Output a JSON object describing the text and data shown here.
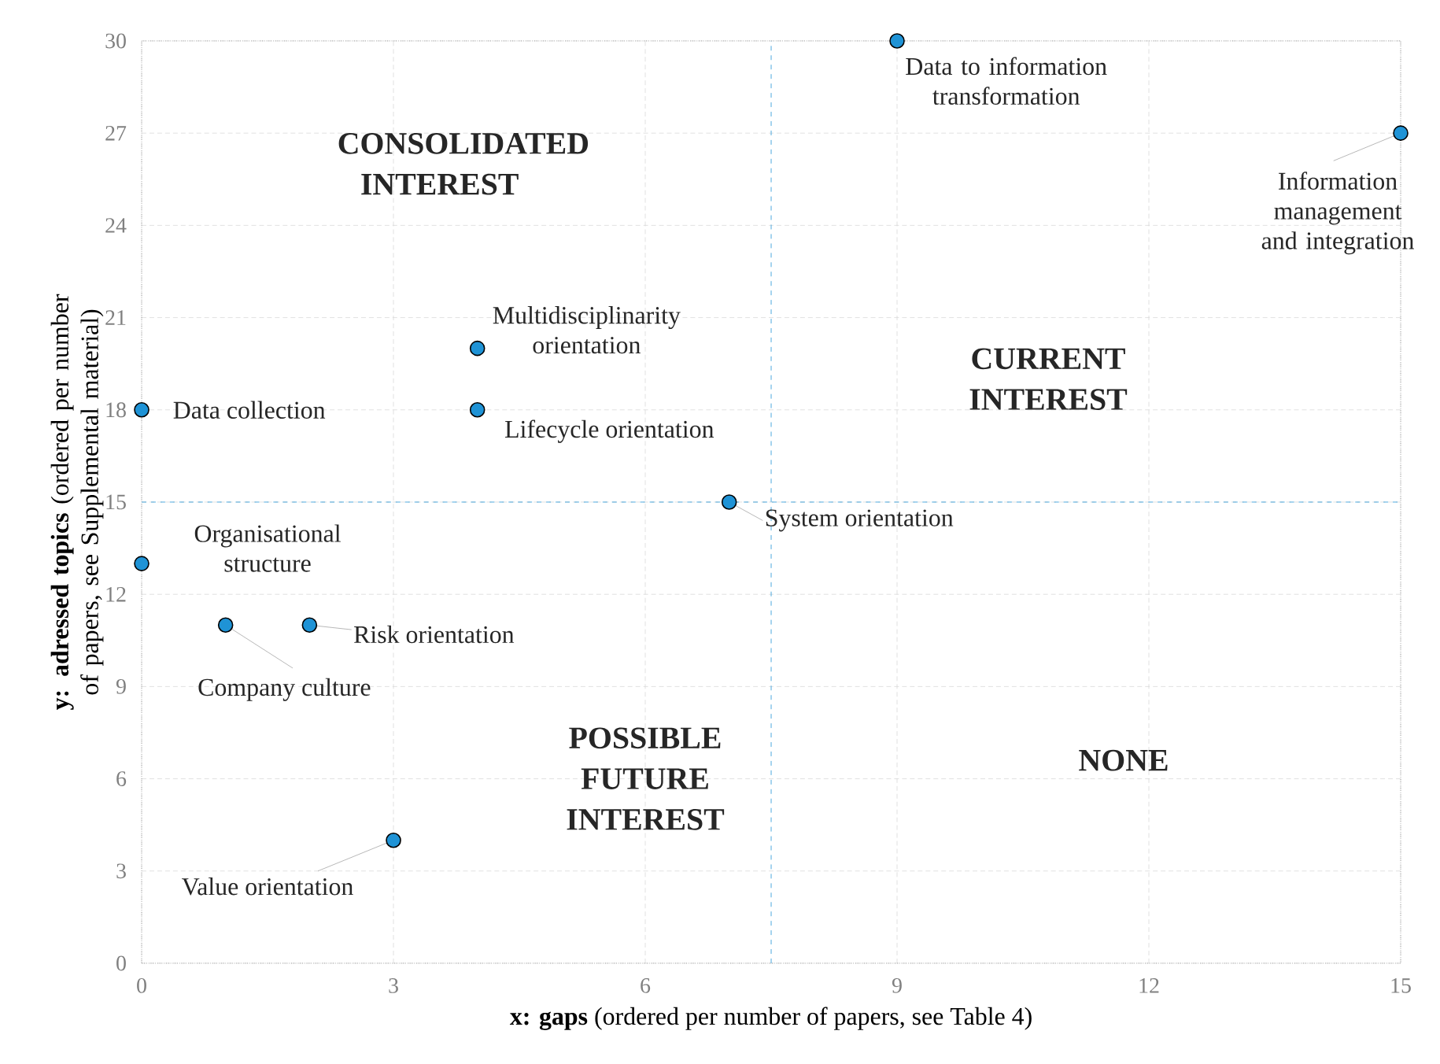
{
  "chart_data": {
    "type": "scatter",
    "xlabel": "**x: gaps** (ordered per number of papers, see Table 4)",
    "ylabel": "**y: adressed topics** (ordered per number of papers, see Supplemental material)",
    "x": [
      9,
      15,
      4,
      0,
      4,
      7,
      0,
      1,
      2,
      3
    ],
    "series": [
      {
        "color": "#1f93d6",
        "values": [
          30,
          27,
          20,
          18,
          18,
          15,
          13,
          11,
          11,
          4
        ]
      }
    ],
    "xlim": [
      0,
      15
    ],
    "ylim": [
      0,
      30
    ],
    "xticks": [
      0,
      3,
      6,
      9,
      12,
      15
    ],
    "yticks": [
      0,
      3,
      6,
      9,
      12,
      15,
      18,
      21,
      24,
      27,
      30
    ],
    "grid": true,
    "marker": "circle",
    "ref_lines": [
      {
        "axis": "x",
        "value": 7.5,
        "color": "#1f93d6",
        "line_style": "dashed"
      },
      {
        "axis": "y",
        "value": 15,
        "color": "#1f93d6",
        "line_style": "dashed"
      }
    ],
    "annotations": [
      {
        "text": "Data to information transformation",
        "x": 9,
        "y": 30
      },
      {
        "text": "Information management and integration",
        "x": 15,
        "y": 27
      },
      {
        "text": "Multidisciplinarity orientation",
        "x": 4,
        "y": 20
      },
      {
        "text": "Data collection",
        "x": 0,
        "y": 18
      },
      {
        "text": "Lifecycle orientation",
        "x": 4,
        "y": 18
      },
      {
        "text": "System orientation",
        "x": 7,
        "y": 15
      },
      {
        "text": "Organisational structure",
        "x": 0,
        "y": 13
      },
      {
        "text": "Company culture",
        "x": 1,
        "y": 11
      },
      {
        "text": "Risk orientation",
        "x": 2,
        "y": 11
      },
      {
        "text": "Value orientation",
        "x": 3,
        "y": 4
      },
      "CONSOLIDATED INTEREST",
      "CURRENT INTEREST",
      "POSSIBLE FUTURE INTEREST",
      "NONE"
    ]
  }
}
